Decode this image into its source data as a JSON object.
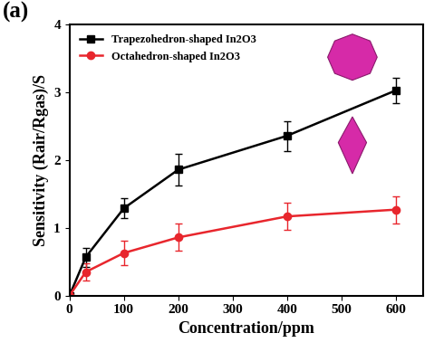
{
  "chart_data": {
    "type": "line",
    "panel_label": "(a)",
    "x_label": "Concentration/ppm",
    "y_label": "Sensitivity (Rair/Rgas)/S",
    "x": [
      0,
      30,
      100,
      200,
      400,
      600
    ],
    "series": [
      {
        "name": "Trapezohedron-shaped In2O3",
        "color": "#000000",
        "marker": "square",
        "line_style": "solid",
        "values": [
          0,
          0.57,
          1.29,
          1.86,
          2.36,
          3.03
        ],
        "errors": [
          0,
          0.14,
          0.15,
          0.23,
          0.22,
          0.19
        ]
      },
      {
        "name": "Octahedron-shaped In2O3",
        "color": "#e8262d",
        "marker": "circle",
        "line_style": "solid",
        "values": [
          0,
          0.35,
          0.63,
          0.86,
          1.17,
          1.27
        ],
        "errors": [
          0,
          0.13,
          0.18,
          0.2,
          0.2,
          0.2
        ]
      }
    ],
    "xlim": [
      0,
      650
    ],
    "xticks": [
      0,
      100,
      200,
      300,
      400,
      500,
      600
    ],
    "ylim": [
      0,
      4
    ],
    "yticks": [
      0,
      1,
      2,
      3,
      4
    ],
    "grid": false,
    "legend": "upper left"
  }
}
